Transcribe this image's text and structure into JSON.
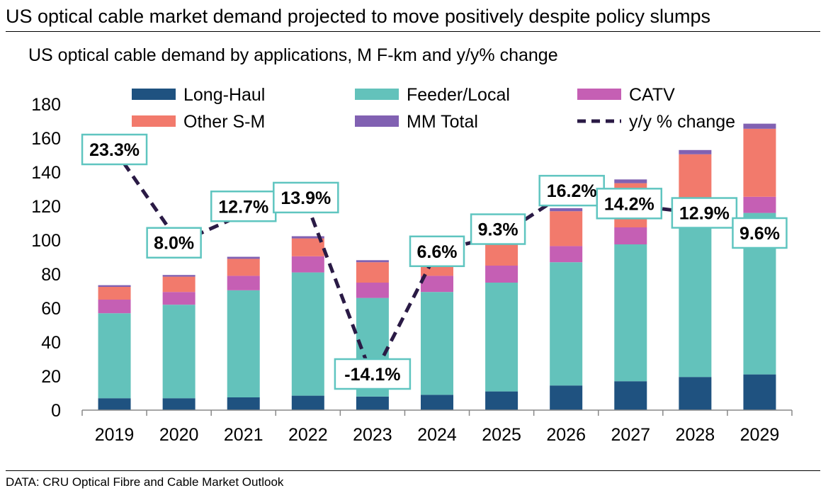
{
  "header": {
    "title": "US optical cable market demand projected to move positively despite policy slumps"
  },
  "footer": {
    "source": "DATA: CRU Optical Fibre and Cable Market Outlook"
  },
  "colors": {
    "long_haul": "#1f5280",
    "feeder_local": "#63c2bb",
    "catv": "#c55fb4",
    "other_sm": "#f27a6c",
    "mm_total": "#8161b2",
    "line": "#2a1a45",
    "label_border": "#5fc5c0"
  },
  "chart_data": {
    "type": "bar",
    "stacked": true,
    "title": "US optical cable demand by applications, M F-km and y/y% change",
    "categories": [
      "2019",
      "2020",
      "2021",
      "2022",
      "2023",
      "2024",
      "2025",
      "2026",
      "2027",
      "2028",
      "2029"
    ],
    "ylim": [
      0,
      180
    ],
    "yticks": [
      0,
      20,
      40,
      60,
      80,
      100,
      120,
      140,
      160,
      180
    ],
    "series": [
      {
        "name": "Long-Haul",
        "color": "#1f5280",
        "values": [
          7,
          7,
          7.5,
          8.5,
          8,
          9,
          11,
          14.5,
          17,
          19.5,
          21
        ]
      },
      {
        "name": "Feeder/Local",
        "color": "#63c2bb",
        "values": [
          50,
          55,
          63,
          72.5,
          58,
          60.5,
          64,
          72.5,
          80.5,
          89,
          95
        ]
      },
      {
        "name": "CATV",
        "color": "#c55fb4",
        "values": [
          8,
          7.5,
          8.5,
          9.5,
          9,
          9.5,
          10,
          9.5,
          10,
          10,
          9.5
        ]
      },
      {
        "name": "Other S-M",
        "color": "#f27a6c",
        "values": [
          7.5,
          9,
          10,
          10.5,
          12,
          13,
          14,
          20.5,
          26,
          32,
          40
        ]
      },
      {
        "name": "MM Total",
        "color": "#8161b2",
        "values": [
          1,
          1,
          1.2,
          1.3,
          1.2,
          1.5,
          1.6,
          1.8,
          2.2,
          2.5,
          3
        ]
      }
    ],
    "line_series": {
      "name": "y/y % change",
      "values": [
        23.3,
        8.0,
        12.7,
        13.9,
        -14.1,
        6.6,
        9.3,
        16.2,
        14.2,
        12.9,
        9.6
      ],
      "labels": [
        "23.3%",
        "8.0%",
        "12.7%",
        "13.9%",
        "-14.1%",
        "6.6%",
        "9.3%",
        "16.2%",
        "14.2%",
        "12.9%",
        "9.6%"
      ]
    },
    "legend": {
      "placement": "top",
      "entries": [
        "Long-Haul",
        "Feeder/Local",
        "CATV",
        "Other S-M",
        "MM Total",
        "y/y % change"
      ]
    }
  }
}
